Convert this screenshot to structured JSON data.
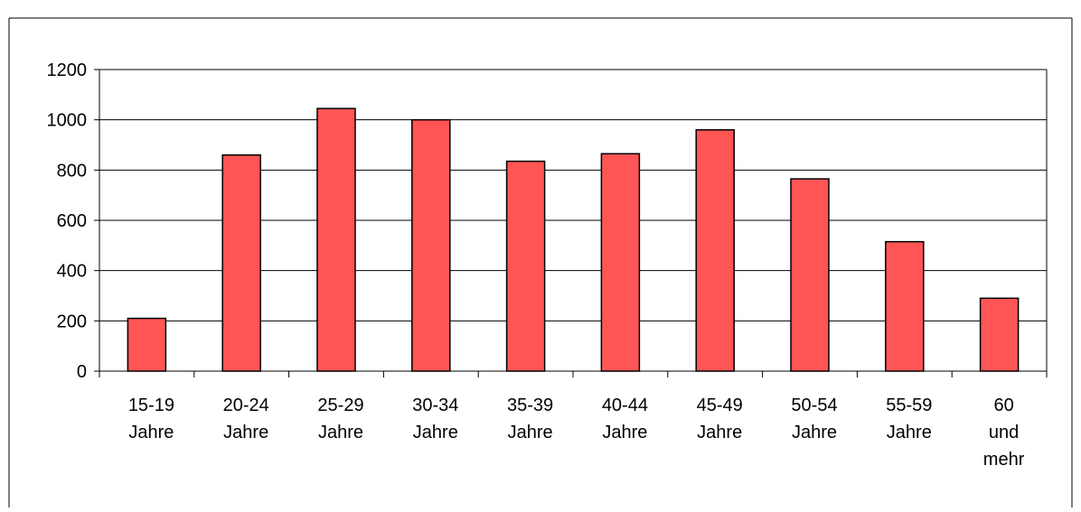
{
  "chart_data": {
    "type": "bar",
    "title": "",
    "xlabel": "",
    "ylabel": "",
    "categories": [
      [
        "15-19",
        "Jahre"
      ],
      [
        "20-24",
        "Jahre"
      ],
      [
        "25-29",
        "Jahre"
      ],
      [
        "30-34",
        "Jahre"
      ],
      [
        "35-39",
        "Jahre"
      ],
      [
        "40-44",
        "Jahre"
      ],
      [
        "45-49",
        "Jahre"
      ],
      [
        "50-54",
        "Jahre"
      ],
      [
        "55-59",
        "Jahre"
      ],
      [
        "60",
        "und",
        "mehr"
      ]
    ],
    "values": [
      210,
      860,
      1045,
      1000,
      835,
      865,
      960,
      765,
      515,
      290
    ],
    "ylim": [
      0,
      1200
    ],
    "yticks": [
      "0",
      "200",
      "400",
      "600",
      "800",
      "1000",
      "1200"
    ],
    "grid": true,
    "legend": "none",
    "colors": {
      "bar_fill": "#FF5555",
      "bar_stroke": "#000000",
      "grid": "#000000",
      "frame": "#000000",
      "background": "#FFFFFF"
    }
  }
}
